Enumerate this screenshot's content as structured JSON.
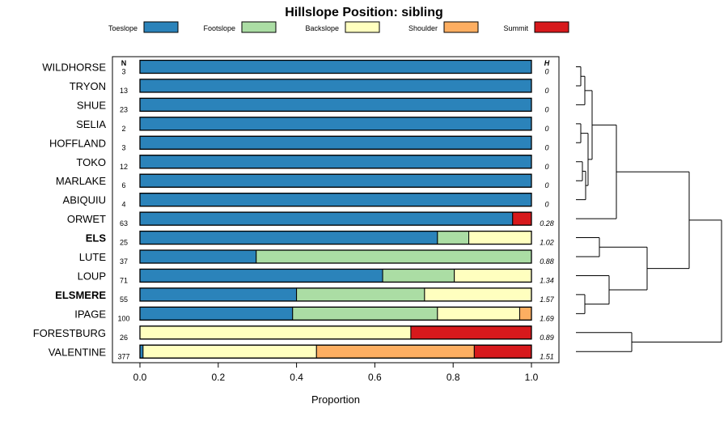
{
  "chart_data": {
    "type": "bar",
    "stacked": true,
    "orientation": "horizontal",
    "title": "Hillslope Position: sibling",
    "xlabel": "Proportion",
    "xlim": [
      0,
      1
    ],
    "x_ticks": [
      "0.0",
      "0.2",
      "0.4",
      "0.6",
      "0.8",
      "1.0"
    ],
    "n_header": "N",
    "h_header": "H",
    "legend_position": "top",
    "series": [
      {
        "name": "Toeslope",
        "color": "#2B83BA"
      },
      {
        "name": "Footslope",
        "color": "#ABDDA4"
      },
      {
        "name": "Backslope",
        "color": "#FFFFBF"
      },
      {
        "name": "Shoulder",
        "color": "#FDAE61"
      },
      {
        "name": "Summit",
        "color": "#D7191C"
      }
    ],
    "categories": [
      {
        "name": "WILDHORSE",
        "bold": false,
        "n": "3",
        "h": "0",
        "values": [
          1.0,
          0,
          0,
          0,
          0
        ]
      },
      {
        "name": "TRYON",
        "bold": false,
        "n": "13",
        "h": "0",
        "values": [
          1.0,
          0,
          0,
          0,
          0
        ]
      },
      {
        "name": "SHUE",
        "bold": false,
        "n": "23",
        "h": "0",
        "values": [
          1.0,
          0,
          0,
          0,
          0
        ]
      },
      {
        "name": "SELIA",
        "bold": false,
        "n": "2",
        "h": "0",
        "values": [
          1.0,
          0,
          0,
          0,
          0
        ]
      },
      {
        "name": "HOFFLAND",
        "bold": false,
        "n": "3",
        "h": "0",
        "values": [
          1.0,
          0,
          0,
          0,
          0
        ]
      },
      {
        "name": "TOKO",
        "bold": false,
        "n": "12",
        "h": "0",
        "values": [
          1.0,
          0,
          0,
          0,
          0
        ]
      },
      {
        "name": "MARLAKE",
        "bold": false,
        "n": "6",
        "h": "0",
        "values": [
          1.0,
          0,
          0,
          0,
          0
        ]
      },
      {
        "name": "ABIQUIU",
        "bold": false,
        "n": "4",
        "h": "0",
        "values": [
          1.0,
          0,
          0,
          0,
          0
        ]
      },
      {
        "name": "ORWET",
        "bold": false,
        "n": "63",
        "h": "0.28",
        "values": [
          0.952,
          0,
          0,
          0,
          0.048
        ]
      },
      {
        "name": "ELS",
        "bold": true,
        "n": "25",
        "h": "1.02",
        "values": [
          0.76,
          0.08,
          0.16,
          0,
          0
        ]
      },
      {
        "name": "LUTE",
        "bold": false,
        "n": "37",
        "h": "0.88",
        "values": [
          0.297,
          0.703,
          0,
          0,
          0
        ]
      },
      {
        "name": "LOUP",
        "bold": false,
        "n": "71",
        "h": "1.34",
        "values": [
          0.62,
          0.183,
          0.197,
          0,
          0
        ]
      },
      {
        "name": "ELSMERE",
        "bold": true,
        "n": "55",
        "h": "1.57",
        "values": [
          0.4,
          0.327,
          0.273,
          0,
          0
        ]
      },
      {
        "name": "IPAGE",
        "bold": false,
        "n": "100",
        "h": "1.69",
        "values": [
          0.39,
          0.37,
          0.21,
          0.03,
          0
        ]
      },
      {
        "name": "FORESTBURG",
        "bold": false,
        "n": "26",
        "h": "0.89",
        "values": [
          0,
          0,
          0.692,
          0,
          0.308
        ]
      },
      {
        "name": "VALENTINE",
        "bold": false,
        "n": "377",
        "h": "1.51",
        "values": [
          0.008,
          0,
          0.443,
          0.403,
          0.146
        ]
      }
    ],
    "dendrogram": "hierarchical clustering tree of the 16 soil series (right side)"
  }
}
